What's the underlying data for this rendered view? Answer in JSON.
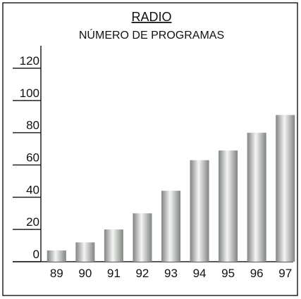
{
  "chart_data": {
    "type": "bar",
    "title": "RADIO",
    "subtitle": "NÚMERO DE PROGRAMAS",
    "categories": [
      "89",
      "90",
      "91",
      "92",
      "93",
      "94",
      "95",
      "96",
      "97"
    ],
    "values": [
      7,
      12,
      20,
      30,
      44,
      63,
      69,
      80,
      91
    ],
    "color": "#7f857f",
    "ylim": [
      0,
      120
    ],
    "yticks": [
      0,
      20,
      40,
      60,
      80,
      100,
      120
    ]
  }
}
